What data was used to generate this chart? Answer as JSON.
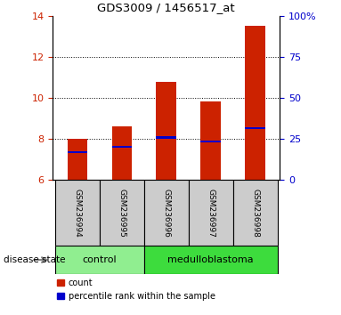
{
  "title": "GDS3009 / 1456517_at",
  "samples": [
    "GSM236994",
    "GSM236995",
    "GSM236996",
    "GSM236997",
    "GSM236998"
  ],
  "red_bar_heights": [
    8.0,
    8.6,
    10.75,
    9.8,
    13.5
  ],
  "blue_marker_pos": [
    7.35,
    7.6,
    8.05,
    7.85,
    8.5
  ],
  "bar_bottom": 6.0,
  "ylim_left": [
    6,
    14
  ],
  "ylim_right": [
    0,
    100
  ],
  "yticks_left": [
    6,
    8,
    10,
    12,
    14
  ],
  "yticks_right": [
    0,
    25,
    50,
    75,
    100
  ],
  "ytick_labels_right": [
    "0",
    "25",
    "50",
    "75",
    "100%"
  ],
  "groups": [
    {
      "label": "control",
      "indices": [
        0,
        1
      ],
      "color": "#90ee90"
    },
    {
      "label": "medulloblastoma",
      "indices": [
        2,
        3,
        4
      ],
      "color": "#3ddc3d"
    }
  ],
  "sample_box_color": "#cccccc",
  "bar_color": "#cc2200",
  "marker_color": "#0000cc",
  "grid_color": "#000000",
  "left_axis_color": "#cc2200",
  "right_axis_color": "#0000cc",
  "disease_state_label": "disease state",
  "legend_count": "count",
  "legend_percentile": "percentile rank within the sample",
  "bar_width": 0.45
}
